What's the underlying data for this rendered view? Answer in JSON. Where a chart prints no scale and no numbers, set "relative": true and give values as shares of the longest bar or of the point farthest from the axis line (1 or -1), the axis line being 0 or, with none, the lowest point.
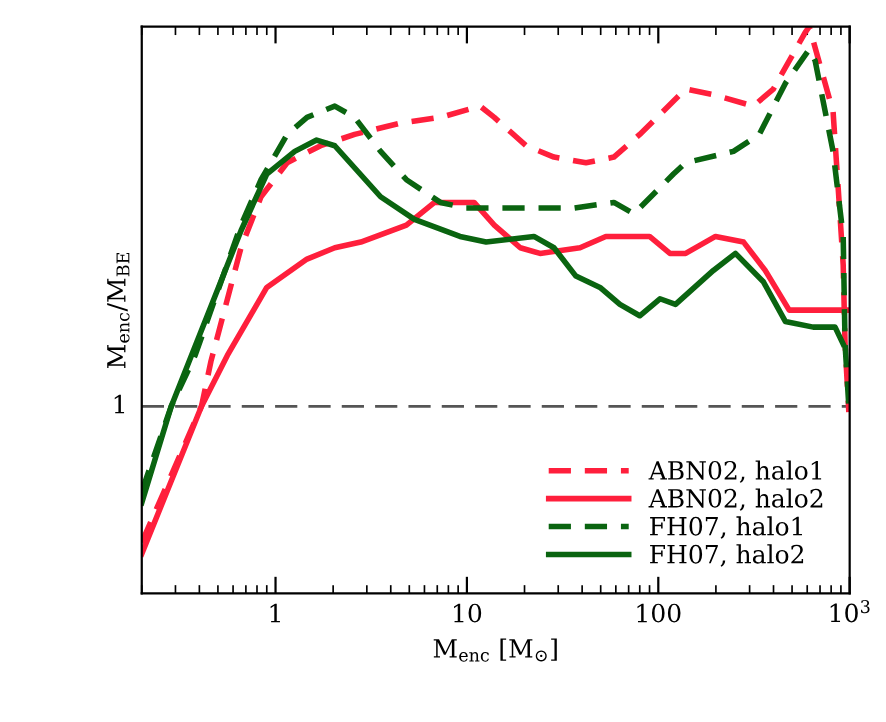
{
  "chart_data": {
    "type": "line",
    "relative": true,
    "xlabel": "M$_{enc}$ [M$_{⊙}$]",
    "ylabel": "M$_{enc}$/M$_{BE}$",
    "log": "x",
    "xlim": [
      0.2,
      1000
    ],
    "xticks": [
      1,
      10,
      100,
      {
        "value": 1000,
        "label": "10$^{3}$"
      }
    ],
    "grid": false,
    "legend": "bottom right",
    "marker": "none",
    "ref_lines": [
      {
        "axis": "y",
        "value": 0.33,
        "color": "#555555",
        "line_style": "dashed"
      }
    ],
    "annotations": [
      "1"
    ],
    "series": [
      {
        "name": "ABN02, halo1",
        "color": "#ff1f3c",
        "line_style": "dashed",
        "x": [
          0.2,
          0.41,
          0.46,
          0.66,
          0.84,
          1.15,
          1.72,
          2.59,
          4.5,
          7.27,
          11.7,
          13.9,
          20.4,
          28.5,
          41.9,
          58.6,
          80,
          139,
          194,
          314,
          399,
          586,
          615,
          819,
          881,
          925,
          946,
          990
        ],
        "values": [
          0.09,
          0.33,
          0.41,
          0.61,
          0.7,
          0.76,
          0.79,
          0.81,
          0.83,
          0.84,
          0.86,
          0.84,
          0.79,
          0.77,
          0.76,
          0.77,
          0.81,
          0.89,
          0.88,
          0.86,
          0.89,
          0.99,
          1,
          0.85,
          0.69,
          0.58,
          0.44,
          0.32
        ]
      },
      {
        "name": "ABN02, halo2",
        "color": "#ff1f3c",
        "line_style": "solid",
        "x": [
          0.2,
          0.41,
          0.56,
          0.9,
          1.46,
          2.04,
          2.79,
          4.83,
          6.77,
          8.6,
          10.9,
          13.9,
          19.0,
          24.1,
          39.0,
          53.2,
          90,
          115,
          139,
          199,
          279,
          362,
          483,
          645,
          990
        ],
        "values": [
          0.07,
          0.33,
          0.42,
          0.54,
          0.59,
          0.61,
          0.62,
          0.65,
          0.69,
          0.69,
          0.69,
          0.65,
          0.61,
          0.6,
          0.61,
          0.63,
          0.63,
          0.6,
          0.6,
          0.63,
          0.62,
          0.57,
          0.5,
          0.5,
          0.5
        ]
      },
      {
        "name": "FH07, halo1",
        "color": "#0a6410",
        "line_style": "dashed",
        "x": [
          0.2,
          0.285,
          0.38,
          0.66,
          0.84,
          1.15,
          1.46,
          2.04,
          2.59,
          3.54,
          4.83,
          7.27,
          9.9,
          16.0,
          36.2,
          58.6,
          74.5,
          120,
          139,
          247,
          337,
          461,
          615,
          660,
          819,
          925,
          946,
          990
        ],
        "values": [
          0.18,
          0.33,
          0.42,
          0.65,
          0.73,
          0.81,
          0.84,
          0.86,
          0.84,
          0.78,
          0.73,
          0.69,
          0.68,
          0.68,
          0.68,
          0.69,
          0.67,
          0.74,
          0.76,
          0.78,
          0.81,
          0.9,
          0.96,
          0.94,
          0.78,
          0.63,
          0.44,
          0.33
        ]
      },
      {
        "name": "FH07, halo2",
        "color": "#0a6410",
        "line_style": "solid",
        "x": [
          0.2,
          0.285,
          0.66,
          0.9,
          1.26,
          1.64,
          2.04,
          3.54,
          5.32,
          9.2,
          12.6,
          22.4,
          28.5,
          37.1,
          49.6,
          63,
          80,
          102,
          123,
          194,
          253,
          354,
          461,
          645,
          839,
          925
        ],
        "values": [
          0.16,
          0.33,
          0.64,
          0.74,
          0.78,
          0.8,
          0.79,
          0.7,
          0.66,
          0.63,
          0.62,
          0.63,
          0.61,
          0.56,
          0.54,
          0.51,
          0.49,
          0.52,
          0.51,
          0.57,
          0.6,
          0.55,
          0.48,
          0.47,
          0.47,
          0.44
        ]
      }
    ]
  }
}
